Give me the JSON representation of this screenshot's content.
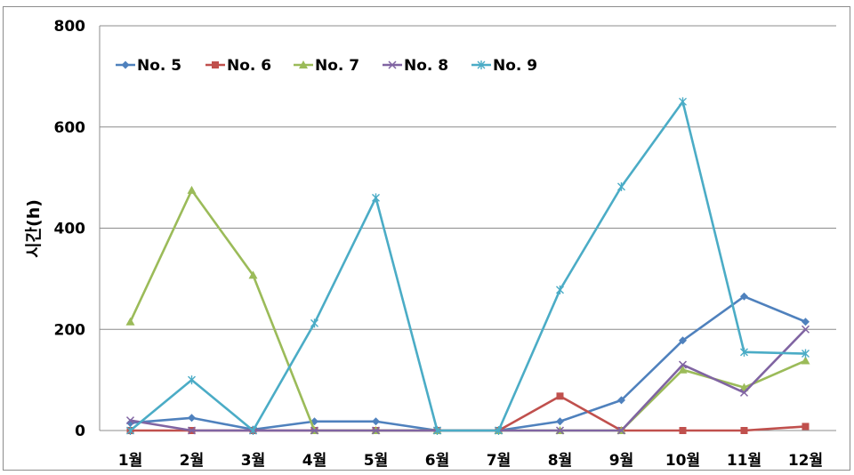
{
  "chart_data": {
    "type": "line",
    "title": "",
    "xlabel": "",
    "ylabel": "시간(h)",
    "ylim": [
      0,
      800
    ],
    "yticks": [
      "0",
      "200",
      "400",
      "600",
      "800"
    ],
    "grid": true,
    "legend_position": "top-left",
    "categories": [
      "1월",
      "2월",
      "3월",
      "4월",
      "5월",
      "6월",
      "7월",
      "8월",
      "9월",
      "10월",
      "11월",
      "12월"
    ],
    "series": [
      {
        "name": "No. 5",
        "color": "#4f81bd",
        "marker": "diamond",
        "values": [
          15,
          25,
          2,
          18,
          18,
          0,
          0,
          18,
          60,
          178,
          265,
          215
        ]
      },
      {
        "name": "No. 6",
        "color": "#c0504d",
        "marker": "square",
        "values": [
          0,
          0,
          0,
          0,
          0,
          0,
          0,
          68,
          0,
          0,
          0,
          8
        ]
      },
      {
        "name": "No. 7",
        "color": "#9bbb59",
        "marker": "triangle",
        "values": [
          215,
          475,
          307,
          0,
          0,
          0,
          0,
          0,
          0,
          120,
          85,
          138
        ]
      },
      {
        "name": "No. 8",
        "color": "#8064a2",
        "marker": "x",
        "values": [
          20,
          0,
          0,
          0,
          0,
          0,
          0,
          0,
          0,
          130,
          75,
          200
        ]
      },
      {
        "name": "No. 9",
        "color": "#4bacc6",
        "marker": "star",
        "values": [
          0,
          100,
          0,
          212,
          460,
          0,
          0,
          278,
          482,
          650,
          155,
          152
        ]
      }
    ]
  }
}
